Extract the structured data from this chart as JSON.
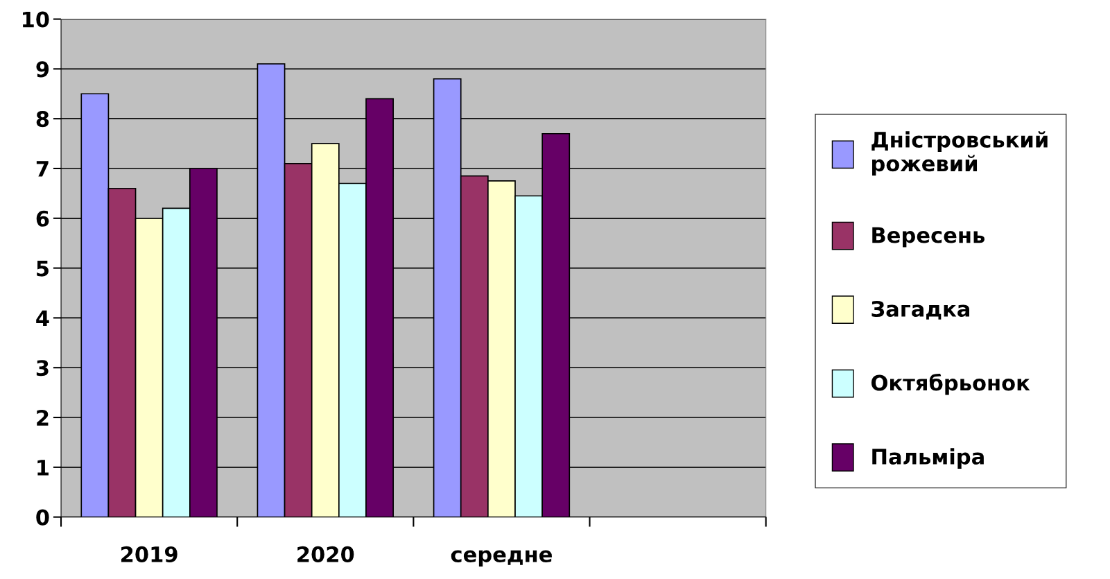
{
  "chart_data": {
    "type": "bar",
    "categories": [
      "2019",
      "2020",
      "середне",
      null
    ],
    "series": [
      {
        "name": "Дністровський\nрожевий",
        "color": "#9999ff",
        "values": [
          8.5,
          9.1,
          8.8,
          null
        ]
      },
      {
        "name": "Вересень",
        "color": "#993366",
        "values": [
          6.6,
          7.1,
          6.85,
          null
        ]
      },
      {
        "name": "Загадка",
        "color": "#ffffcc",
        "values": [
          6.0,
          7.5,
          6.75,
          null
        ]
      },
      {
        "name": "Октябрьонок",
        "color": "#ccffff",
        "values": [
          6.2,
          6.7,
          6.45,
          null
        ]
      },
      {
        "name": "Пальміра",
        "color": "#660066",
        "values": [
          7.0,
          8.4,
          7.7,
          null
        ]
      }
    ],
    "ylim": [
      0,
      10
    ],
    "yticks": [
      0,
      1,
      2,
      3,
      4,
      5,
      6,
      7,
      8,
      9,
      10
    ],
    "grid": "y",
    "legend": "right"
  }
}
